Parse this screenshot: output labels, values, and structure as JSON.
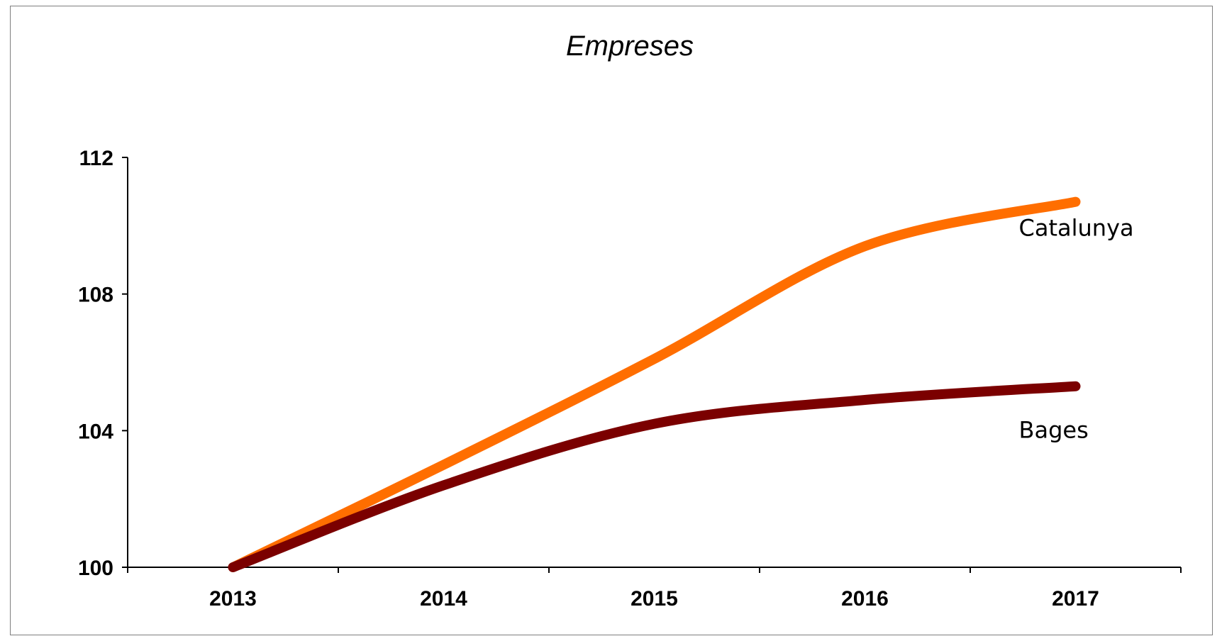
{
  "chart_data": {
    "type": "line",
    "title": "Empreses",
    "xlabel": "",
    "ylabel": "",
    "categories": [
      "2013",
      "2014",
      "2015",
      "2016",
      "2017"
    ],
    "ylim": [
      100,
      112
    ],
    "yticks": [
      "100",
      "104",
      "108",
      "112"
    ],
    "grid": false,
    "legend": "inline labels at right",
    "series": [
      {
        "name": "Catalunya",
        "color": "#ff6e00",
        "values": [
          100.0,
          103.0,
          106.1,
          109.4,
          110.7
        ]
      },
      {
        "name": "Bages",
        "color": "#7b0000",
        "values": [
          100.0,
          102.4,
          104.2,
          104.9,
          105.3
        ]
      }
    ]
  }
}
